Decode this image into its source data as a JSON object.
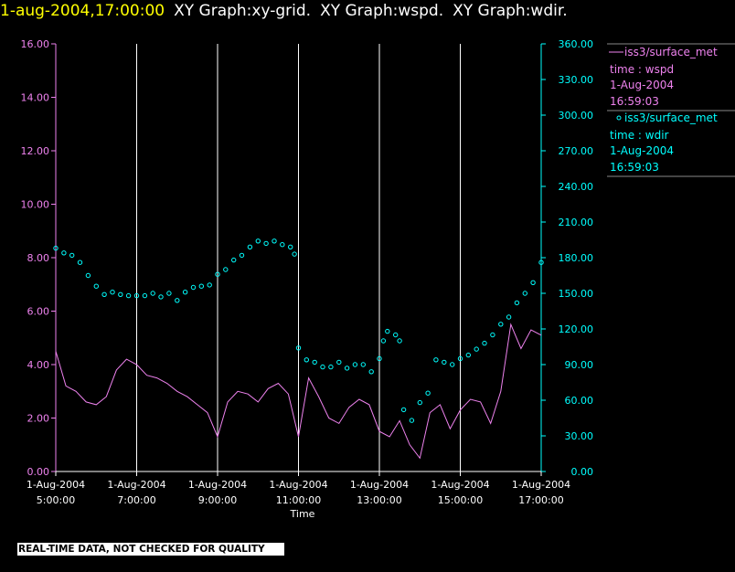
{
  "header": {
    "timestamp": "1-aug-2004,17:00:00",
    "graph_titles": [
      "XY Graph:xy-grid.",
      "XY Graph:wspd.",
      "XY Graph:wdir."
    ]
  },
  "footer": {
    "notice": "REAL-TIME DATA, NOT CHECKED FOR QUALITY"
  },
  "colors": {
    "wspd": "#ee82ee",
    "wdir": "#00ffff",
    "grid": "#ffffff",
    "background": "#000000",
    "timestamp": "#ffff00"
  },
  "chart_data": {
    "type": "line",
    "title": "",
    "xlabel": "Time",
    "x_ticks": [
      {
        "date": "1-Aug-2004",
        "time": "5:00:00",
        "hour": 5
      },
      {
        "date": "1-Aug-2004",
        "time": "7:00:00",
        "hour": 7
      },
      {
        "date": "1-Aug-2004",
        "time": "9:00:00",
        "hour": 9
      },
      {
        "date": "1-Aug-2004",
        "time": "11:00:00",
        "hour": 11
      },
      {
        "date": "1-Aug-2004",
        "time": "13:00:00",
        "hour": 13
      },
      {
        "date": "1-Aug-2004",
        "time": "15:00:00",
        "hour": 15
      },
      {
        "date": "1-Aug-2004",
        "time": "17:00:00",
        "hour": 17
      }
    ],
    "xlim": [
      5,
      17
    ],
    "grid": "vertical",
    "y_left": {
      "lim": [
        0,
        16
      ],
      "ticks": [
        "0.00",
        "2.00",
        "4.00",
        "6.00",
        "8.00",
        "10.00",
        "12.00",
        "14.00",
        "16.00"
      ]
    },
    "y_right": {
      "lim": [
        0,
        360
      ],
      "ticks": [
        "0.00",
        "30.00",
        "60.00",
        "90.00",
        "120.00",
        "150.00",
        "180.00",
        "210.00",
        "240.00",
        "270.00",
        "300.00",
        "330.00",
        "360.00"
      ]
    },
    "legend_position": "right",
    "series": [
      {
        "name": "iss3/surface_met",
        "legend_lines": [
          "time : wspd",
          "1-Aug-2004",
          "16:59:03"
        ],
        "style": "line",
        "axis": "left",
        "x": [
          5.0,
          5.25,
          5.5,
          5.75,
          6.0,
          6.25,
          6.5,
          6.75,
          7.0,
          7.25,
          7.5,
          7.75,
          8.0,
          8.25,
          8.5,
          8.75,
          9.0,
          9.25,
          9.5,
          9.75,
          10.0,
          10.25,
          10.5,
          10.75,
          11.0,
          11.25,
          11.5,
          11.75,
          12.0,
          12.25,
          12.5,
          12.75,
          13.0,
          13.25,
          13.5,
          13.75,
          14.0,
          14.25,
          14.5,
          14.75,
          15.0,
          15.25,
          15.5,
          15.75,
          16.0,
          16.25,
          16.5,
          16.75,
          17.0
        ],
        "values": [
          4.5,
          3.2,
          3.0,
          2.6,
          2.5,
          2.8,
          3.8,
          4.2,
          4.0,
          3.6,
          3.5,
          3.3,
          3.0,
          2.8,
          2.5,
          2.2,
          1.3,
          2.6,
          3.0,
          2.9,
          2.6,
          3.1,
          3.3,
          2.9,
          1.3,
          3.5,
          2.8,
          2.0,
          1.8,
          2.4,
          2.7,
          2.5,
          1.5,
          1.3,
          1.9,
          1.0,
          0.5,
          2.2,
          2.5,
          1.6,
          2.3,
          2.7,
          2.6,
          1.8,
          3.0,
          5.5,
          4.6,
          5.3,
          5.1
        ]
      },
      {
        "name": "iss3/surface_met",
        "legend_lines": [
          "time : wdir",
          "1-Aug-2004",
          "16:59:03"
        ],
        "style": "scatter",
        "axis": "right",
        "x": [
          5.0,
          5.2,
          5.4,
          5.6,
          5.8,
          6.0,
          6.2,
          6.4,
          6.6,
          6.8,
          7.0,
          7.2,
          7.4,
          7.6,
          7.8,
          8.0,
          8.2,
          8.4,
          8.6,
          8.8,
          9.0,
          9.2,
          9.4,
          9.6,
          9.8,
          10.0,
          10.2,
          10.4,
          10.6,
          10.8,
          10.9,
          11.0,
          11.2,
          11.4,
          11.6,
          11.8,
          12.0,
          12.2,
          12.4,
          12.6,
          12.8,
          13.0,
          13.1,
          13.2,
          13.4,
          13.5,
          13.6,
          13.8,
          14.0,
          14.2,
          14.4,
          14.6,
          14.8,
          15.0,
          15.2,
          15.4,
          15.6,
          15.8,
          16.0,
          16.2,
          16.4,
          16.6,
          16.8,
          17.0
        ],
        "values": [
          188,
          184,
          182,
          176,
          165,
          156,
          149,
          151,
          149,
          148,
          148,
          148,
          150,
          147,
          150,
          144,
          151,
          155,
          156,
          157,
          166,
          170,
          178,
          182,
          189,
          194,
          192,
          194,
          191,
          189,
          183,
          104,
          94,
          92,
          88,
          88,
          92,
          87,
          90,
          90,
          84,
          95,
          110,
          118,
          115,
          110,
          52,
          43,
          58,
          66,
          94,
          92,
          90,
          95,
          98,
          103,
          108,
          115,
          124,
          130,
          142,
          150,
          159,
          176
        ]
      }
    ]
  }
}
